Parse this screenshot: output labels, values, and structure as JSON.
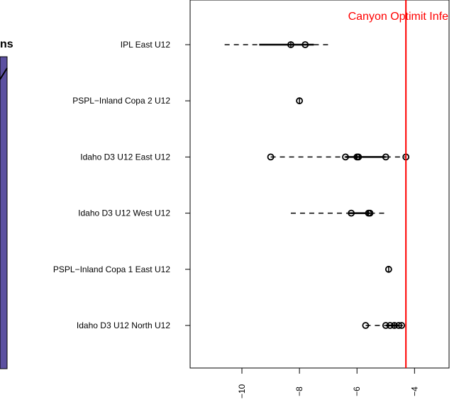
{
  "side_panel": {
    "fragment_text": "ns",
    "fill_color": "#5b50a0"
  },
  "chart_data": {
    "type": "boxplot",
    "orientation": "horizontal",
    "title": "",
    "xlabel": "",
    "ylabel": "",
    "xlim": [
      -11.8,
      -2.8
    ],
    "xticks": [
      -10,
      -8,
      -6,
      -4
    ],
    "xtick_labels": [
      "−10",
      "−8",
      "−6",
      "−4"
    ],
    "reference_line": {
      "x": -4.3,
      "label": "Canyon Optimit Infe",
      "color": "#ff0000"
    },
    "categories": [
      {
        "label": "IPL East U12",
        "whisker_low": -10.6,
        "q1": -9.4,
        "median": -8.3,
        "q3": -7.5,
        "whisker_high": -6.9,
        "points": [
          -8.3,
          -7.8
        ]
      },
      {
        "label": "PSPL−Inland Copa 2 U12",
        "whisker_low": -8.0,
        "q1": -8.0,
        "median": -8.0,
        "q3": -8.0,
        "whisker_high": -8.0,
        "points": [
          -8.0
        ]
      },
      {
        "label": "Idaho D3 U12 East U12",
        "whisker_low": -9.0,
        "q1": -6.4,
        "median": -6.0,
        "q3": -5.0,
        "whisker_high": -4.3,
        "points": [
          -9.0,
          -6.4,
          -6.0,
          -5.95,
          -5.0,
          -4.3
        ]
      },
      {
        "label": "Idaho D3 U12 West U12",
        "whisker_low": -8.3,
        "q1": -6.3,
        "median": -5.6,
        "q3": -5.55,
        "whisker_high": -5.0,
        "points": [
          -6.2,
          -5.6,
          -5.55
        ]
      },
      {
        "label": "PSPL−Inland Copa 1 East U12",
        "whisker_low": -4.9,
        "q1": -4.9,
        "median": -4.9,
        "q3": -4.9,
        "whisker_high": -4.9,
        "points": [
          -4.9
        ]
      },
      {
        "label": "Idaho D3 U12 North U12",
        "whisker_low": -5.7,
        "q1": -5.0,
        "median": -4.7,
        "q3": -4.55,
        "whisker_high": -4.4,
        "points": [
          -5.7,
          -5.0,
          -4.85,
          -4.7,
          -4.55,
          -4.45
        ]
      }
    ]
  }
}
